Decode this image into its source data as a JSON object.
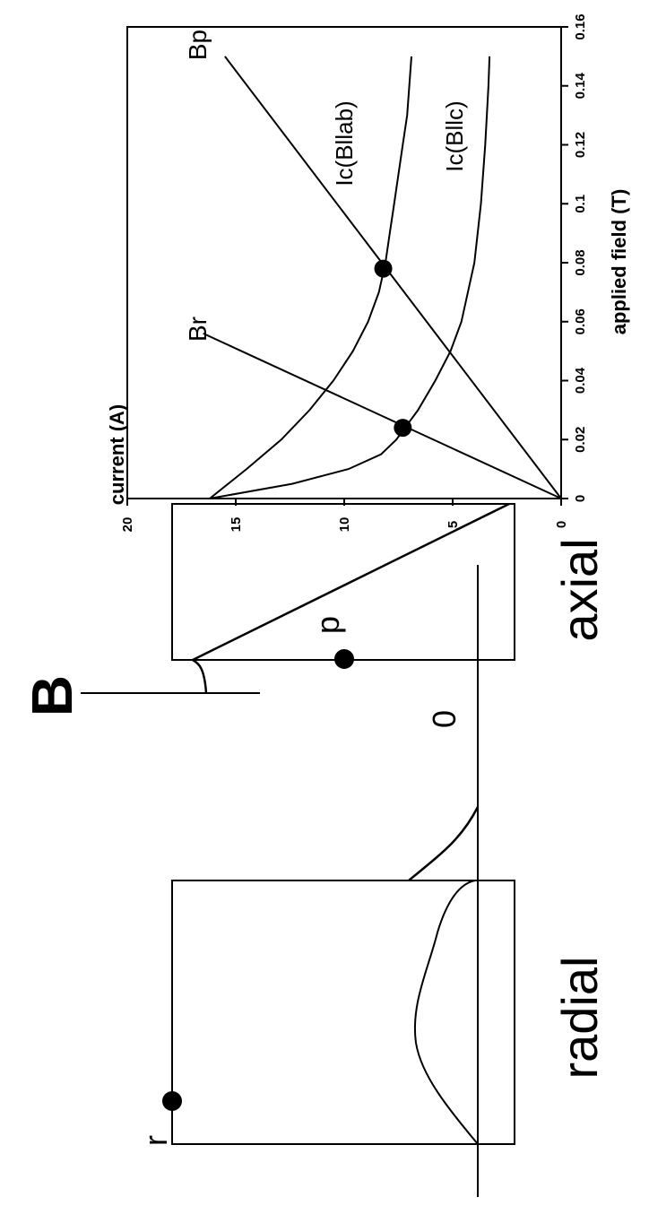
{
  "chart_data": [
    {
      "type": "line",
      "xlabel": "applied field (T)",
      "ylabel": "current (A)",
      "xlim": [
        0,
        0.16
      ],
      "ylim": [
        0,
        20
      ],
      "xticks": [
        "0",
        "0.02",
        "0.04",
        "0.06",
        "0.08",
        "0.1",
        "0.12",
        "0.14",
        "0.16"
      ],
      "yticks": [
        "0",
        "5",
        "10",
        "15",
        "20"
      ],
      "rotation": "rotated 90° counter-clockwise (x axis runs up the right side, y axis along the bottom)",
      "series": [
        {
          "name": "Ic(B||ab)",
          "x": [
            0,
            0.01,
            0.02,
            0.03,
            0.04,
            0.05,
            0.06,
            0.07,
            0.08,
            0.09,
            0.1,
            0.11,
            0.12,
            0.13,
            0.14,
            0.15
          ],
          "y": [
            16.2,
            14.5,
            12.9,
            11.6,
            10.5,
            9.6,
            8.9,
            8.4,
            8.1,
            7.9,
            7.7,
            7.5,
            7.3,
            7.1,
            7.0,
            6.9
          ]
        },
        {
          "name": "Ic(B||c)",
          "x": [
            0,
            0.005,
            0.01,
            0.015,
            0.02,
            0.025,
            0.03,
            0.04,
            0.05,
            0.06,
            0.08,
            0.1,
            0.12,
            0.14,
            0.15
          ],
          "y": [
            16.2,
            12.4,
            9.8,
            8.3,
            7.6,
            7.1,
            6.6,
            5.8,
            5.1,
            4.6,
            4.0,
            3.7,
            3.5,
            3.35,
            3.3
          ]
        },
        {
          "name": "Br",
          "x": [
            0,
            0.056
          ],
          "y": [
            0,
            16.5
          ]
        },
        {
          "name": "Bp",
          "x": [
            0,
            0.15
          ],
          "y": [
            0,
            15.5
          ]
        }
      ],
      "labels": {
        "ic_ab": "Ic(Bllab)",
        "ic_c": "Ic(Bllc)",
        "br": "Br",
        "bp": "Bp"
      },
      "points": [
        {
          "x": 0.024,
          "y": 7.3
        },
        {
          "x": 0.078,
          "y": 8.2
        }
      ]
    }
  ],
  "diagram": {
    "panel_label": "B",
    "origin_label": "0",
    "radial_label": "radial",
    "axial_label": "axial",
    "r_label": "r",
    "p_label": "p"
  }
}
